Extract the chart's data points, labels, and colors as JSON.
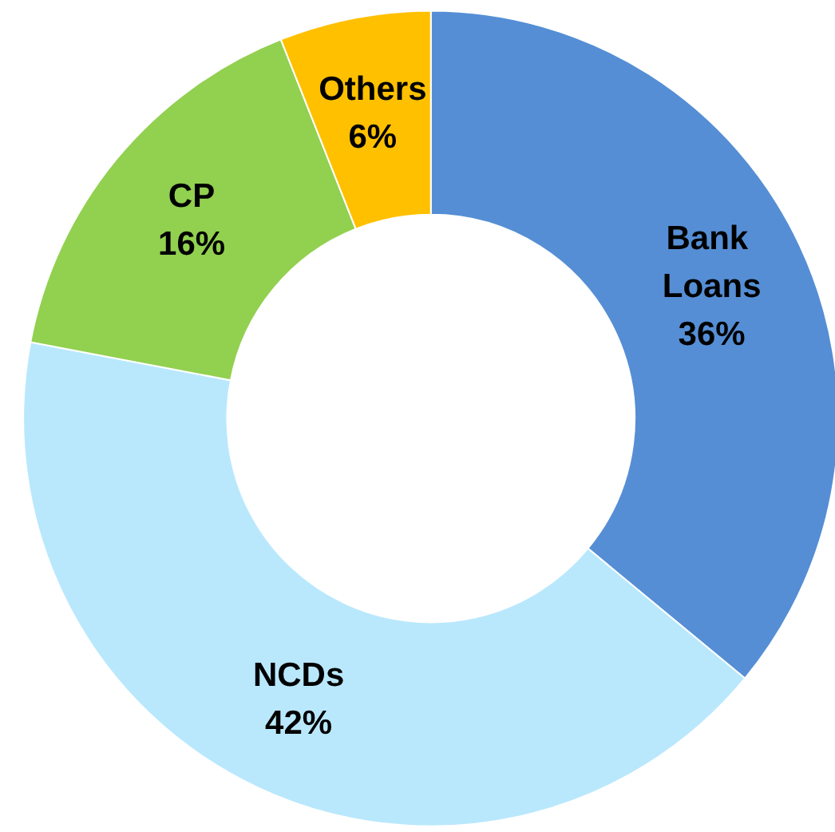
{
  "chart_data": {
    "type": "donut",
    "categories": [
      "Bank Loans",
      "NCDs",
      "CP",
      "Others"
    ],
    "values": [
      36,
      42,
      16,
      6
    ],
    "colors": [
      "#558ed5",
      "#b9e8fd",
      "#92d050",
      "#ffc000"
    ],
    "value_labels": [
      "36%",
      "42%",
      "16%",
      "6%"
    ],
    "legend": false
  }
}
